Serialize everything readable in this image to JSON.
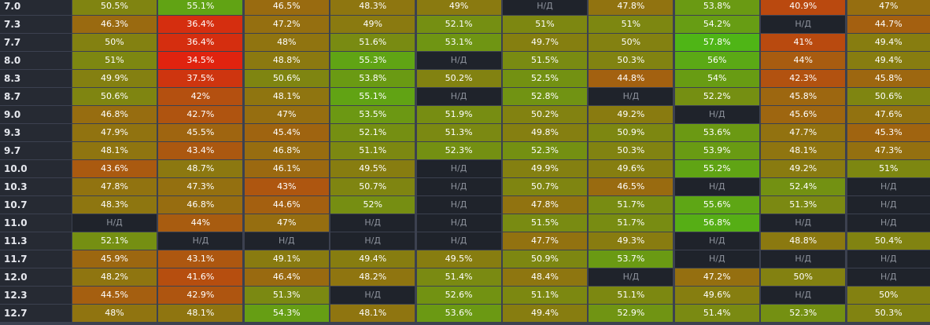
{
  "na_label": "Н/Д",
  "colors": {
    "na_cell": "#1f232b",
    "row_label_bg": "#262a33",
    "grid_line": "#3c4150",
    "scale_low": "#e0230f",
    "scale_mid": "#8a7a10",
    "scale_high": "#4fb516"
  },
  "chart_data": {
    "type": "heatmap",
    "rows": [
      "7.0",
      "7.3",
      "7.7",
      "8.0",
      "8.3",
      "8.7",
      "9.0",
      "9.3",
      "9.7",
      "10.0",
      "10.3",
      "10.7",
      "11.0",
      "11.3",
      "11.7",
      "12.0",
      "12.3",
      "12.7"
    ],
    "values": [
      [
        "50.5%",
        "55.1%",
        "46.5%",
        "48.3%",
        "49%",
        "Н/Д",
        "47.8%",
        "53.8%",
        "40.9%",
        "47%"
      ],
      [
        "46.3%",
        "36.4%",
        "47.2%",
        "49%",
        "52.1%",
        "51%",
        "51%",
        "54.2%",
        "Н/Д",
        "44.7%"
      ],
      [
        "50%",
        "36.4%",
        "48%",
        "51.6%",
        "53.1%",
        "49.7%",
        "50%",
        "57.8%",
        "41%",
        "49.4%"
      ],
      [
        "51%",
        "34.5%",
        "48.8%",
        "55.3%",
        "Н/Д",
        "51.5%",
        "50.3%",
        "56%",
        "44%",
        "49.4%"
      ],
      [
        "49.9%",
        "37.5%",
        "50.6%",
        "53.8%",
        "50.2%",
        "52.5%",
        "44.8%",
        "54%",
        "42.3%",
        "45.8%"
      ],
      [
        "50.6%",
        "42%",
        "48.1%",
        "55.1%",
        "Н/Д",
        "52.8%",
        "Н/Д",
        "52.2%",
        "45.8%",
        "50.6%"
      ],
      [
        "46.8%",
        "42.7%",
        "47%",
        "53.5%",
        "51.9%",
        "50.2%",
        "49.2%",
        "Н/Д",
        "45.6%",
        "47.6%"
      ],
      [
        "47.9%",
        "45.5%",
        "45.4%",
        "52.1%",
        "51.3%",
        "49.8%",
        "50.9%",
        "53.6%",
        "47.7%",
        "45.3%"
      ],
      [
        "48.1%",
        "43.4%",
        "46.8%",
        "51.1%",
        "52.3%",
        "52.3%",
        "50.3%",
        "53.9%",
        "48.1%",
        "47.3%"
      ],
      [
        "43.6%",
        "48.7%",
        "46.1%",
        "49.5%",
        "Н/Д",
        "49.9%",
        "49.6%",
        "55.2%",
        "49.2%",
        "51%"
      ],
      [
        "47.8%",
        "47.3%",
        "43%",
        "50.7%",
        "Н/Д",
        "50.7%",
        "46.5%",
        "Н/Д",
        "52.4%",
        "Н/Д"
      ],
      [
        "48.3%",
        "46.8%",
        "44.6%",
        "52%",
        "Н/Д",
        "47.8%",
        "51.7%",
        "55.6%",
        "51.3%",
        "Н/Д"
      ],
      [
        "Н/Д",
        "44%",
        "47%",
        "Н/Д",
        "Н/Д",
        "51.5%",
        "51.7%",
        "56.8%",
        "Н/Д",
        "Н/Д"
      ],
      [
        "52.1%",
        "Н/Д",
        "Н/Д",
        "Н/Д",
        "Н/Д",
        "47.7%",
        "49.3%",
        "Н/Д",
        "48.8%",
        "50.4%"
      ],
      [
        "45.9%",
        "43.1%",
        "49.1%",
        "49.4%",
        "49.5%",
        "50.9%",
        "53.7%",
        "Н/Д",
        "Н/Д",
        "Н/Д"
      ],
      [
        "48.2%",
        "41.6%",
        "46.4%",
        "48.2%",
        "51.4%",
        "48.4%",
        "Н/Д",
        "47.2%",
        "50%",
        "Н/Д"
      ],
      [
        "44.5%",
        "42.9%",
        "51.3%",
        "Н/Д",
        "52.6%",
        "51.1%",
        "51.1%",
        "49.6%",
        "Н/Д",
        "50%"
      ],
      [
        "48%",
        "48.1%",
        "54.3%",
        "48.1%",
        "53.6%",
        "49.4%",
        "52.9%",
        "51.4%",
        "52.3%",
        "50.3%"
      ]
    ],
    "color_scale": {
      "low": 34.5,
      "mid": 49,
      "high": 57.8
    }
  }
}
